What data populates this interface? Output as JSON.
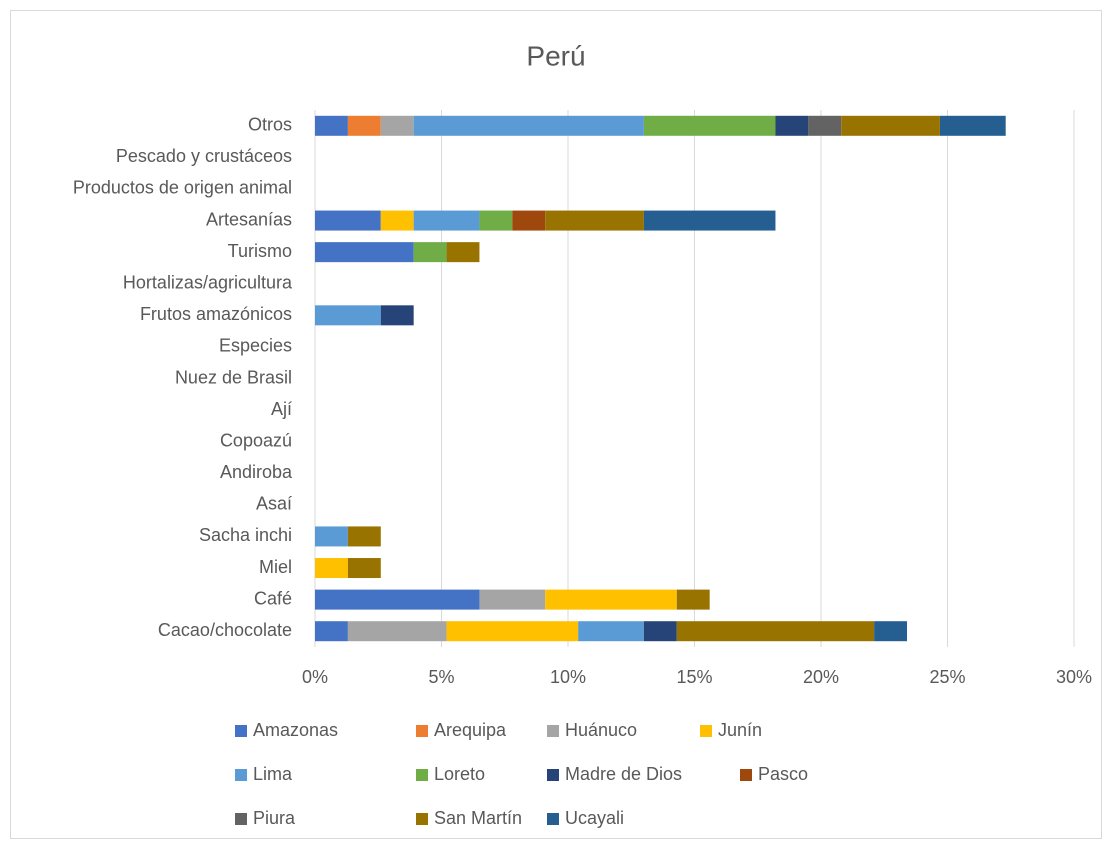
{
  "chart_data": {
    "type": "stacked_bar_horizontal",
    "title": "Perú",
    "categories": [
      "Cacao/chocolate",
      "Café",
      "Miel",
      "Sacha inchi",
      "Asaí",
      "Andiroba",
      "Copoazú",
      "Ají",
      "Nuez de Brasil",
      "Especies",
      "Frutos amazónicos",
      "Hortalizas/agricultura",
      "Turismo",
      "Artesanías",
      "Productos de origen animal",
      "Pescado y crustáceos",
      "Otros"
    ],
    "series": [
      {
        "name": "Amazonas",
        "color": "#4472c4",
        "values": [
          1.3,
          6.5,
          null,
          null,
          null,
          null,
          null,
          null,
          null,
          null,
          null,
          null,
          3.9,
          2.6,
          null,
          null,
          1.3
        ]
      },
      {
        "name": "Arequipa",
        "color": "#ed7d31",
        "values": [
          null,
          null,
          null,
          null,
          null,
          null,
          null,
          null,
          null,
          null,
          null,
          null,
          null,
          null,
          null,
          null,
          1.3
        ]
      },
      {
        "name": "Huánuco",
        "color": "#a5a5a5",
        "values": [
          3.9,
          2.6,
          null,
          null,
          null,
          null,
          null,
          null,
          null,
          null,
          null,
          null,
          null,
          null,
          null,
          null,
          1.3
        ]
      },
      {
        "name": "Junín",
        "color": "#ffc000",
        "values": [
          5.2,
          5.2,
          1.3,
          null,
          null,
          null,
          null,
          null,
          null,
          null,
          null,
          null,
          null,
          1.3,
          null,
          null,
          null
        ]
      },
      {
        "name": "Lima",
        "color": "#5b9bd5",
        "values": [
          2.6,
          null,
          null,
          1.3,
          null,
          null,
          null,
          null,
          null,
          null,
          2.6,
          null,
          null,
          2.6,
          null,
          null,
          9.1
        ]
      },
      {
        "name": "Loreto",
        "color": "#70ad47",
        "values": [
          null,
          null,
          null,
          null,
          null,
          null,
          null,
          null,
          null,
          null,
          null,
          null,
          1.3,
          1.3,
          null,
          null,
          5.2
        ]
      },
      {
        "name": "Madre de Dios",
        "color": "#264478",
        "values": [
          1.3,
          null,
          null,
          null,
          null,
          null,
          null,
          null,
          null,
          null,
          1.3,
          null,
          null,
          null,
          null,
          null,
          1.3
        ]
      },
      {
        "name": "Pasco",
        "color": "#9e480e",
        "values": [
          null,
          null,
          null,
          null,
          null,
          null,
          null,
          null,
          null,
          null,
          null,
          null,
          null,
          1.3,
          null,
          null,
          null
        ]
      },
      {
        "name": "Piura",
        "color": "#636363",
        "values": [
          null,
          null,
          null,
          null,
          null,
          null,
          null,
          null,
          null,
          null,
          null,
          null,
          null,
          null,
          null,
          null,
          1.3
        ]
      },
      {
        "name": "San Martín",
        "color": "#997300",
        "values": [
          7.8,
          1.3,
          1.3,
          1.3,
          null,
          null,
          null,
          null,
          null,
          null,
          null,
          null,
          1.3,
          3.9,
          null,
          null,
          3.9
        ]
      },
      {
        "name": "Ucayali",
        "color": "#255e91",
        "values": [
          1.3,
          null,
          null,
          null,
          null,
          null,
          null,
          null,
          null,
          null,
          null,
          null,
          null,
          5.2,
          null,
          null,
          2.6
        ]
      }
    ],
    "xlim": [
      0,
      30
    ],
    "xticks": [
      {
        "value": 0,
        "label": "0%"
      },
      {
        "value": 5,
        "label": "5%"
      },
      {
        "value": 10,
        "label": "10%"
      },
      {
        "value": 15,
        "label": "15%"
      },
      {
        "value": 20,
        "label": "20%"
      },
      {
        "value": 25,
        "label": "25%"
      },
      {
        "value": 30,
        "label": "30%"
      }
    ],
    "grid": true,
    "legend": "bottom"
  }
}
